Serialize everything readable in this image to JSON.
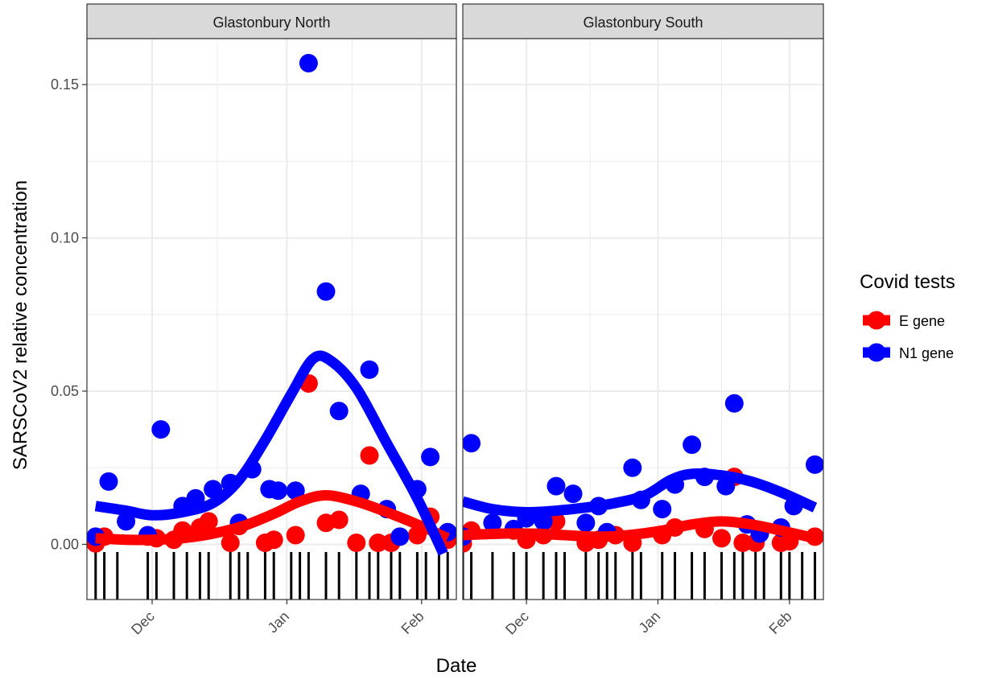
{
  "chart_data": {
    "type": "scatter",
    "xlabel": "Date",
    "ylabel": "SARSCoV2 relative concentration",
    "ylim": [
      -0.018,
      0.165
    ],
    "y_ticks": [
      0.0,
      0.05,
      0.1,
      0.15
    ],
    "y_tick_labels": [
      "0.00",
      "0.05",
      "0.10",
      "0.15"
    ],
    "x_ticks": [
      "2020-12-01",
      "2021-01-01",
      "2021-02-01"
    ],
    "x_tick_labels": [
      "Dec",
      "Jan",
      "Feb"
    ],
    "xlim": [
      "2020-11-16",
      "2021-02-09"
    ],
    "grid": true,
    "legend": {
      "title": "Covid tests",
      "position": "right",
      "entries": [
        {
          "label": "E gene",
          "color": "#ff0000"
        },
        {
          "label": "N1 gene",
          "color": "#0000ff"
        }
      ]
    },
    "panels": [
      {
        "strip": "Glastonbury North",
        "rug_dates": [
          "2020-11-18",
          "2020-11-20",
          "2020-11-23",
          "2020-11-30",
          "2020-12-02",
          "2020-12-06",
          "2020-12-09",
          "2020-12-12",
          "2020-12-14",
          "2020-12-19",
          "2020-12-21",
          "2020-12-23",
          "2020-12-27",
          "2020-12-29",
          "2021-01-02",
          "2021-01-04",
          "2021-01-06",
          "2021-01-10",
          "2021-01-13",
          "2021-01-17",
          "2021-01-20",
          "2021-01-22",
          "2021-01-25",
          "2021-01-27",
          "2021-01-31",
          "2021-02-02",
          "2021-02-05",
          "2021-02-07"
        ],
        "series": [
          {
            "name": "E gene",
            "color": "#ff0000",
            "points": [
              [
                "2020-11-18",
                0.0003
              ],
              [
                "2020-11-20",
                0.0025
              ],
              [
                "2020-11-30",
                0.0025
              ],
              [
                "2020-12-02",
                0.002
              ],
              [
                "2020-12-06",
                0.0015
              ],
              [
                "2020-12-08",
                0.0045
              ],
              [
                "2020-12-12",
                0.0055
              ],
              [
                "2020-12-14",
                0.0075
              ],
              [
                "2020-12-19",
                0.0005
              ],
              [
                "2020-12-21",
                0.006
              ],
              [
                "2020-12-27",
                0.0005
              ],
              [
                "2020-12-29",
                0.0015
              ],
              [
                "2021-01-03",
                0.003
              ],
              [
                "2021-01-06",
                0.0525
              ],
              [
                "2021-01-10",
                0.007
              ],
              [
                "2021-01-13",
                0.008
              ],
              [
                "2021-01-17",
                0.0005
              ],
              [
                "2021-01-20",
                0.029
              ],
              [
                "2021-01-22",
                0.0005
              ],
              [
                "2021-01-25",
                0.0005
              ],
              [
                "2021-01-31",
                0.003
              ],
              [
                "2021-02-03",
                0.009
              ],
              [
                "2021-02-07",
                0.0015
              ]
            ],
            "smooth": [
              [
                "2020-11-18",
                0.002
              ],
              [
                "2020-11-25",
                0.0015
              ],
              [
                "2020-12-01",
                0.0015
              ],
              [
                "2020-12-08",
                0.002
              ],
              [
                "2020-12-15",
                0.0035
              ],
              [
                "2020-12-22",
                0.006
              ],
              [
                "2020-12-29",
                0.01
              ],
              [
                "2021-01-04",
                0.014
              ],
              [
                "2021-01-10",
                0.016
              ],
              [
                "2021-01-17",
                0.014
              ],
              [
                "2021-01-24",
                0.0105
              ],
              [
                "2021-01-31",
                0.0065
              ],
              [
                "2021-02-07",
                0.002
              ]
            ]
          },
          {
            "name": "N1 gene",
            "color": "#0000ff",
            "points": [
              [
                "2020-11-18",
                0.0025
              ],
              [
                "2020-11-21",
                0.0205
              ],
              [
                "2020-11-25",
                0.0075
              ],
              [
                "2020-11-30",
                0.003
              ],
              [
                "2020-12-03",
                0.0375
              ],
              [
                "2020-12-08",
                0.0125
              ],
              [
                "2020-12-11",
                0.015
              ],
              [
                "2020-12-15",
                0.018
              ],
              [
                "2020-12-19",
                0.02
              ],
              [
                "2020-12-21",
                0.007
              ],
              [
                "2020-12-24",
                0.0245
              ],
              [
                "2020-12-28",
                0.018
              ],
              [
                "2020-12-30",
                0.0175
              ],
              [
                "2021-01-03",
                0.0175
              ],
              [
                "2021-01-06",
                0.157
              ],
              [
                "2021-01-10",
                0.0825
              ],
              [
                "2021-01-13",
                0.0435
              ],
              [
                "2021-01-18",
                0.0165
              ],
              [
                "2021-01-20",
                0.057
              ],
              [
                "2021-01-24",
                0.0115
              ],
              [
                "2021-01-27",
                0.0025
              ],
              [
                "2021-01-31",
                0.018
              ],
              [
                "2021-02-03",
                0.0285
              ],
              [
                "2021-02-07",
                0.004
              ]
            ],
            "smooth": [
              [
                "2020-11-18",
                0.0125
              ],
              [
                "2020-11-25",
                0.011
              ],
              [
                "2020-12-01",
                0.0095
              ],
              [
                "2020-12-08",
                0.0105
              ],
              [
                "2020-12-15",
                0.0135
              ],
              [
                "2020-12-21",
                0.021
              ],
              [
                "2020-12-27",
                0.034
              ],
              [
                "2021-01-02",
                0.049
              ],
              [
                "2021-01-07",
                0.0605
              ],
              [
                "2021-01-11",
                0.06
              ],
              [
                "2021-01-17",
                0.051
              ],
              [
                "2021-01-24",
                0.033
              ],
              [
                "2021-01-31",
                0.015
              ],
              [
                "2021-02-06",
                -0.003
              ]
            ]
          }
        ]
      },
      {
        "strip": "Glastonbury South",
        "rug_dates": [
          "2020-11-16",
          "2020-11-18",
          "2020-11-23",
          "2020-11-28",
          "2020-12-01",
          "2020-12-05",
          "2020-12-08",
          "2020-12-10",
          "2020-12-15",
          "2020-12-18",
          "2020-12-20",
          "2020-12-22",
          "2020-12-26",
          "2020-12-28",
          "2021-01-02",
          "2021-01-05",
          "2021-01-09",
          "2021-01-12",
          "2021-01-16",
          "2021-01-19",
          "2021-01-21",
          "2021-01-24",
          "2021-01-26",
          "2021-01-30",
          "2021-02-01",
          "2021-02-04",
          "2021-02-07"
        ],
        "series": [
          {
            "name": "E gene",
            "color": "#ff0000",
            "points": [
              [
                "2020-11-16",
                0.0003
              ],
              [
                "2020-11-18",
                0.0045
              ],
              [
                "2020-11-28",
                0.0045
              ],
              [
                "2020-12-01",
                0.0015
              ],
              [
                "2020-12-05",
                0.003
              ],
              [
                "2020-12-08",
                0.0075
              ],
              [
                "2020-12-15",
                0.0005
              ],
              [
                "2020-12-18",
                0.0015
              ],
              [
                "2020-12-22",
                0.003
              ],
              [
                "2020-12-26",
                0.0005
              ],
              [
                "2021-01-02",
                0.003
              ],
              [
                "2021-01-05",
                0.0055
              ],
              [
                "2021-01-12",
                0.005
              ],
              [
                "2021-01-16",
                0.002
              ],
              [
                "2021-01-19",
                0.022
              ],
              [
                "2021-01-21",
                0.0005
              ],
              [
                "2021-01-24",
                0.0005
              ],
              [
                "2021-01-30",
                0.0005
              ],
              [
                "2021-02-01",
                0.001
              ],
              [
                "2021-02-07",
                0.0025
              ]
            ],
            "smooth": [
              [
                "2020-11-16",
                0.003
              ],
              [
                "2020-11-25",
                0.0035
              ],
              [
                "2020-12-03",
                0.0035
              ],
              [
                "2020-12-10",
                0.003
              ],
              [
                "2020-12-18",
                0.0025
              ],
              [
                "2020-12-25",
                0.003
              ],
              [
                "2021-01-02",
                0.0045
              ],
              [
                "2021-01-09",
                0.0065
              ],
              [
                "2021-01-16",
                0.0075
              ],
              [
                "2021-01-23",
                0.0065
              ],
              [
                "2021-01-30",
                0.0045
              ],
              [
                "2021-02-07",
                0.002
              ]
            ]
          },
          {
            "name": "N1 gene",
            "color": "#0000ff",
            "points": [
              [
                "2020-11-16",
                0.0025
              ],
              [
                "2020-11-18",
                0.033
              ],
              [
                "2020-11-23",
                0.007
              ],
              [
                "2020-11-28",
                0.005
              ],
              [
                "2020-12-01",
                0.0085
              ],
              [
                "2020-12-05",
                0.0075
              ],
              [
                "2020-12-08",
                0.019
              ],
              [
                "2020-12-12",
                0.0165
              ],
              [
                "2020-12-15",
                0.007
              ],
              [
                "2020-12-18",
                0.0125
              ],
              [
                "2020-12-20",
                0.004
              ],
              [
                "2020-12-26",
                0.025
              ],
              [
                "2020-12-28",
                0.0145
              ],
              [
                "2021-01-02",
                0.0115
              ],
              [
                "2021-01-05",
                0.0195
              ],
              [
                "2021-01-09",
                0.0325
              ],
              [
                "2021-01-12",
                0.022
              ],
              [
                "2021-01-17",
                0.019
              ],
              [
                "2021-01-19",
                0.046
              ],
              [
                "2021-01-22",
                0.0065
              ],
              [
                "2021-01-25",
                0.0035
              ],
              [
                "2021-01-30",
                0.0055
              ],
              [
                "2021-02-02",
                0.0125
              ],
              [
                "2021-02-07",
                0.026
              ]
            ],
            "smooth": [
              [
                "2020-11-16",
                0.014
              ],
              [
                "2020-11-23",
                0.0115
              ],
              [
                "2020-12-01",
                0.0105
              ],
              [
                "2020-12-08",
                0.011
              ],
              [
                "2020-12-15",
                0.012
              ],
              [
                "2020-12-22",
                0.0135
              ],
              [
                "2020-12-29",
                0.016
              ],
              [
                "2021-01-04",
                0.021
              ],
              [
                "2021-01-09",
                0.023
              ],
              [
                "2021-01-16",
                0.0225
              ],
              [
                "2021-01-23",
                0.0205
              ],
              [
                "2021-01-30",
                0.017
              ],
              [
                "2021-02-07",
                0.012
              ]
            ]
          }
        ]
      }
    ]
  }
}
